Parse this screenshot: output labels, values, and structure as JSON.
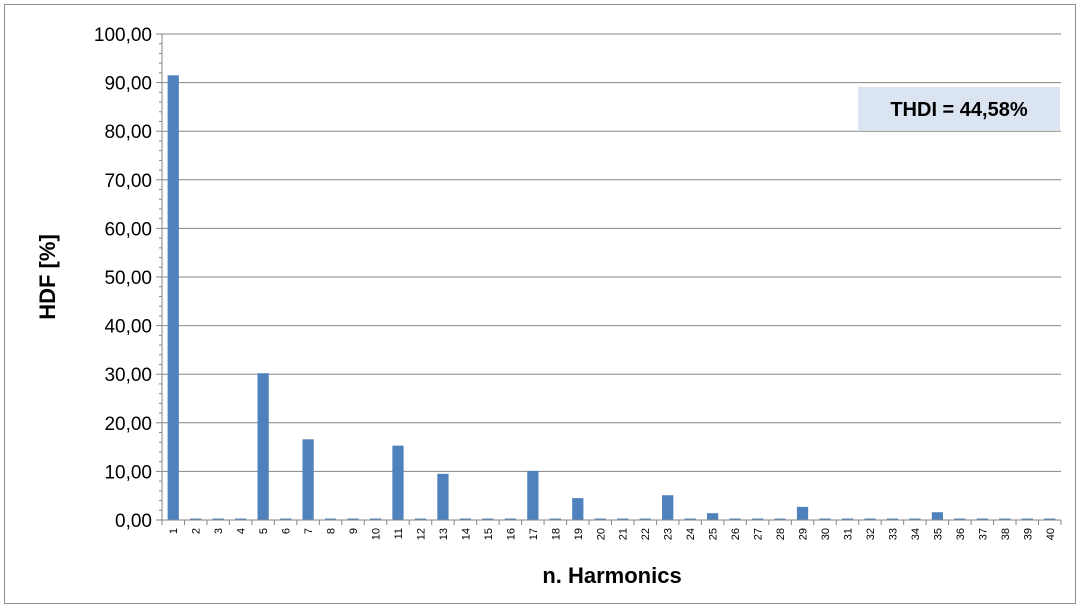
{
  "chart_data": {
    "type": "bar",
    "title": "",
    "xlabel": "n. Harmonics",
    "ylabel": "HDF [%]",
    "ylim": [
      0,
      100
    ],
    "y_ticks": [
      "0,00",
      "10,00",
      "20,00",
      "30,00",
      "40,00",
      "50,00",
      "60,00",
      "70,00",
      "80,00",
      "90,00",
      "100,00"
    ],
    "categories": [
      "1",
      "2",
      "3",
      "4",
      "5",
      "6",
      "7",
      "8",
      "9",
      "10",
      "11",
      "12",
      "13",
      "14",
      "15",
      "16",
      "17",
      "18",
      "19",
      "20",
      "21",
      "22",
      "23",
      "24",
      "25",
      "26",
      "27",
      "28",
      "29",
      "30",
      "31",
      "32",
      "33",
      "34",
      "35",
      "36",
      "37",
      "38",
      "39",
      "40"
    ],
    "values": [
      91.5,
      0.3,
      0.3,
      0.3,
      30.2,
      0.3,
      16.6,
      0.3,
      0.3,
      0.3,
      15.3,
      0.3,
      9.5,
      0.3,
      0.3,
      0.3,
      10.1,
      0.3,
      4.5,
      0.3,
      0.3,
      0.3,
      5.1,
      0.3,
      1.4,
      0.3,
      0.3,
      0.3,
      2.7,
      0.3,
      0.3,
      0.3,
      0.3,
      0.3,
      1.6,
      0.3,
      0.3,
      0.3,
      0.3,
      0.3
    ],
    "grid": true,
    "legend": "none",
    "bar_color": "#4f81bd",
    "annotation": "THDI = 44,58%",
    "annotation_bg": "#dbe5f1"
  }
}
